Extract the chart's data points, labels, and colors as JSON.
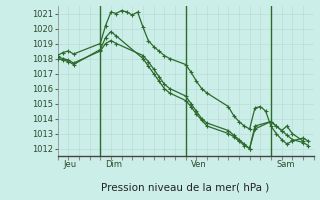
{
  "title": "Pression niveau de la mer( hPa )",
  "bg_color": "#cceee8",
  "grid_minor_color": "#bbddd8",
  "grid_major_color": "#aacccc",
  "line_color": "#2d6a2d",
  "vline_color": "#2d6a2d",
  "ylim": [
    1011.5,
    1021.5
  ],
  "yticks": [
    1012,
    1013,
    1014,
    1015,
    1016,
    1017,
    1018,
    1019,
    1020,
    1021
  ],
  "xlim": [
    0,
    48
  ],
  "day_vlines": [
    8,
    24,
    40
  ],
  "day_labels": [
    [
      "Jeu",
      1
    ],
    [
      "Dim",
      9
    ],
    [
      "Ven",
      25
    ],
    [
      "Sam",
      41
    ]
  ],
  "series": [
    {
      "x": [
        0,
        1,
        2,
        3,
        8,
        9,
        10,
        11,
        12,
        13,
        14,
        15,
        16,
        17,
        18,
        19,
        20,
        21,
        24,
        25,
        26,
        27,
        28,
        32,
        33,
        34,
        35,
        36,
        37,
        38,
        39,
        40,
        41,
        42,
        43,
        44,
        46,
        47
      ],
      "y": [
        1018.2,
        1018.4,
        1018.5,
        1018.3,
        1019.0,
        1020.2,
        1021.1,
        1021.0,
        1021.2,
        1021.1,
        1020.9,
        1021.1,
        1020.1,
        1019.2,
        1018.8,
        1018.5,
        1018.2,
        1018.0,
        1017.6,
        1017.1,
        1016.5,
        1016.0,
        1015.7,
        1014.8,
        1014.2,
        1013.8,
        1013.5,
        1013.3,
        1014.7,
        1014.8,
        1014.5,
        1013.5,
        1013.0,
        1012.6,
        1012.3,
        1012.5,
        1012.7,
        1012.5
      ]
    },
    {
      "x": [
        0,
        1,
        2,
        3,
        8,
        9,
        10,
        11,
        16,
        17,
        18,
        19,
        20,
        21,
        24,
        25,
        26,
        27,
        28,
        32,
        33,
        34,
        35,
        36,
        37,
        40,
        41,
        42,
        43,
        44,
        46
      ],
      "y": [
        1018.0,
        1017.9,
        1017.8,
        1017.6,
        1018.6,
        1019.4,
        1019.8,
        1019.5,
        1018.0,
        1017.5,
        1017.0,
        1016.5,
        1016.0,
        1015.7,
        1015.2,
        1014.8,
        1014.3,
        1013.9,
        1013.5,
        1013.0,
        1012.8,
        1012.5,
        1012.2,
        1012.0,
        1013.3,
        1013.8,
        1013.5,
        1013.2,
        1013.5,
        1013.0,
        1012.5
      ]
    },
    {
      "x": [
        0,
        1,
        2,
        3,
        8,
        9,
        10,
        11,
        16,
        17,
        18,
        19,
        20,
        21,
        24,
        25,
        26,
        27,
        28,
        32,
        33,
        34,
        35,
        36,
        37,
        40,
        41,
        42,
        43,
        44,
        46,
        47
      ],
      "y": [
        1018.1,
        1018.0,
        1017.9,
        1017.7,
        1018.5,
        1019.0,
        1019.2,
        1019.0,
        1018.2,
        1017.8,
        1017.3,
        1016.8,
        1016.3,
        1016.0,
        1015.5,
        1015.0,
        1014.5,
        1014.0,
        1013.7,
        1013.2,
        1012.9,
        1012.6,
        1012.3,
        1012.0,
        1013.5,
        1013.8,
        1013.5,
        1013.2,
        1012.9,
        1012.6,
        1012.4,
        1012.2
      ]
    }
  ]
}
